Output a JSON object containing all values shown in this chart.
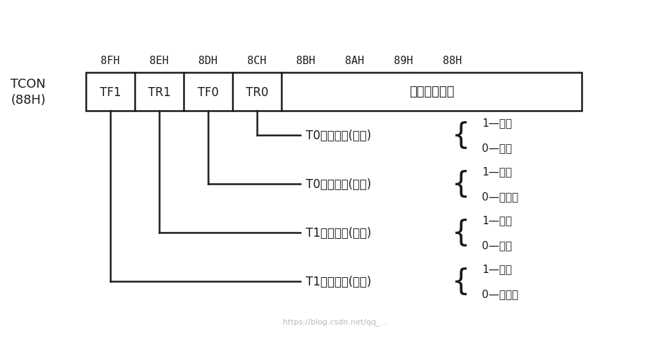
{
  "bg_color": "#ffffff",
  "line_color": "#1a1a1a",
  "text_color": "#1a1a1a",
  "tcon_label": "TCON\n(88H)",
  "addr_labels": [
    "8FH",
    "8EH",
    "8DH",
    "8CH",
    "8BH",
    "8AH",
    "89H",
    "88H"
  ],
  "bit_labels": [
    "TF1",
    "TR1",
    "TF0",
    "TR0"
  ],
  "right_label": "用于外部中断",
  "connections": [
    {
      "bit_index": 3,
      "label": "T0运行控制(软件)",
      "options": [
        "1—启动",
        "0—停止"
      ]
    },
    {
      "bit_index": 2,
      "label": "T0溢出标志(硬件)",
      "options": [
        "1—溢出",
        "0—未溢出"
      ]
    },
    {
      "bit_index": 1,
      "label": "T1运行控制(软件)",
      "options": [
        "1—启动",
        "0—停止"
      ]
    },
    {
      "bit_index": 0,
      "label": "T1溢出标志(硬件)",
      "options": [
        "1—溢出",
        "0—未溢出"
      ]
    }
  ],
  "watermark": "https://blog.csdn.net/qq_..."
}
